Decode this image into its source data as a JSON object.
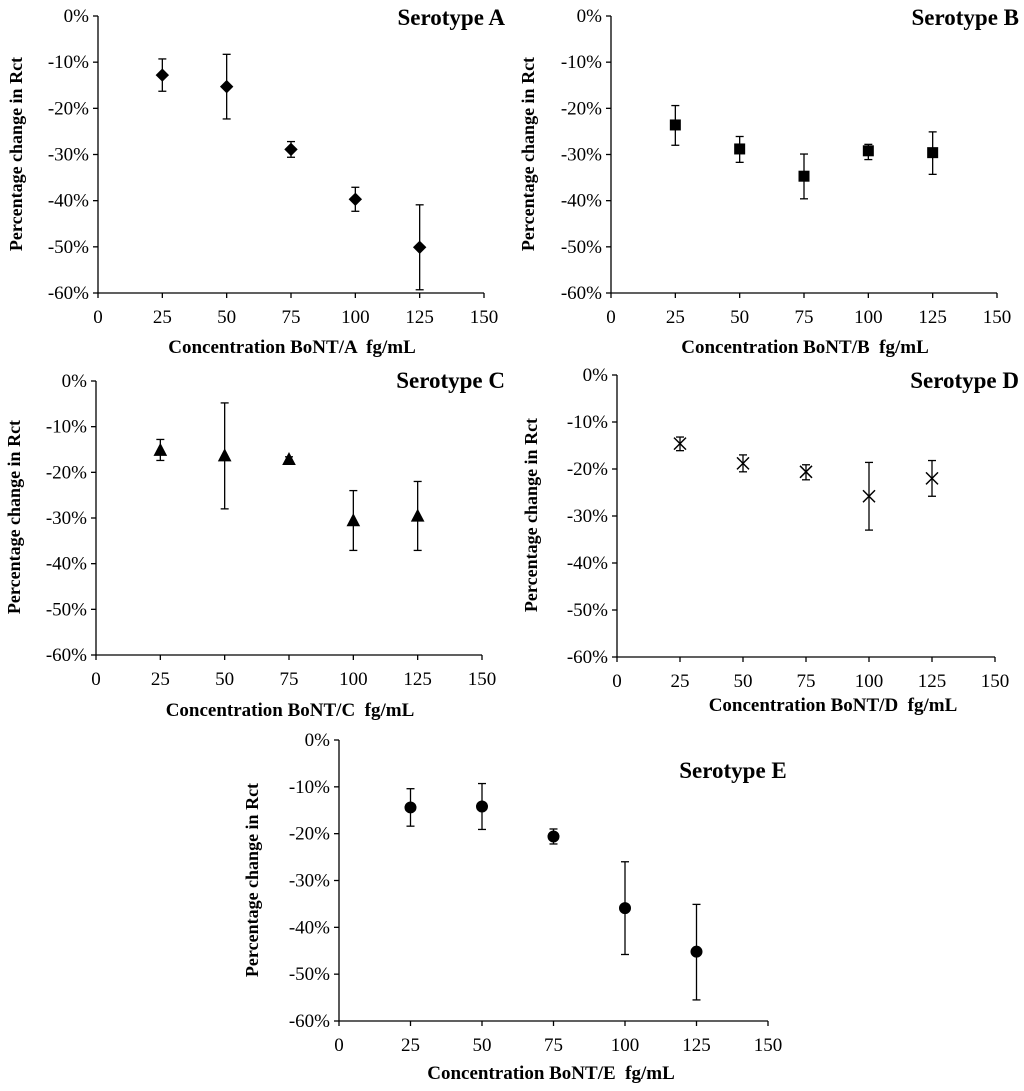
{
  "chart_data": [
    {
      "id": "A",
      "type": "scatter",
      "title": "Serotype A",
      "xlabel": "Concentration BoNT/A  fg/mL",
      "ylabel": "Percentage change in Rct",
      "marker": "diamond",
      "xlim": [
        0,
        150
      ],
      "ylim": [
        -60,
        0
      ],
      "x_ticks": [
        0,
        25,
        50,
        75,
        100,
        125,
        150
      ],
      "y_ticks": [
        0,
        -10,
        -20,
        -30,
        -40,
        -50,
        -60
      ],
      "y_tick_labels": [
        "0%",
        "-10%",
        "-20%",
        "-30%",
        "-40%",
        "-50%",
        "-60%"
      ],
      "points": [
        {
          "x": 25,
          "y": -12.8,
          "err_low": -16.3,
          "err_high": -9.3
        },
        {
          "x": 50,
          "y": -15.3,
          "err_low": -22.3,
          "err_high": -8.3
        },
        {
          "x": 75,
          "y": -28.9,
          "err_low": -30.6,
          "err_high": -27.2
        },
        {
          "x": 100,
          "y": -39.7,
          "err_low": -42.3,
          "err_high": -37.1
        },
        {
          "x": 125,
          "y": -50.1,
          "err_low": -59.3,
          "err_high": -40.9
        }
      ]
    },
    {
      "id": "B",
      "type": "scatter",
      "title": "Serotype B",
      "xlabel": "Concentration BoNT/B  fg/mL",
      "ylabel": "Percentage change in Rct",
      "marker": "square",
      "xlim": [
        0,
        150
      ],
      "ylim": [
        -60,
        0
      ],
      "x_ticks": [
        0,
        25,
        50,
        75,
        100,
        125,
        150
      ],
      "y_ticks": [
        0,
        -10,
        -20,
        -30,
        -40,
        -50,
        -60
      ],
      "y_tick_labels": [
        "0%",
        "-10%",
        "-20%",
        "-30%",
        "-40%",
        "-50%",
        "-60%"
      ],
      "points": [
        {
          "x": 25,
          "y": -23.6,
          "err_low": -28.0,
          "err_high": -19.4
        },
        {
          "x": 50,
          "y": -28.8,
          "err_low": -31.7,
          "err_high": -26.1
        },
        {
          "x": 75,
          "y": -34.7,
          "err_low": -39.6,
          "err_high": -29.9
        },
        {
          "x": 100,
          "y": -29.2,
          "err_low": -31.1,
          "err_high": -27.8
        },
        {
          "x": 125,
          "y": -29.6,
          "err_low": -34.3,
          "err_high": -25.1
        }
      ]
    },
    {
      "id": "C",
      "type": "scatter",
      "title": "Serotype C",
      "xlabel": "Concentration BoNT/C  fg/mL",
      "ylabel": "Percentage change in Rct",
      "marker": "triangle",
      "xlim": [
        0,
        150
      ],
      "ylim": [
        -60,
        0
      ],
      "x_ticks": [
        0,
        25,
        50,
        75,
        100,
        125,
        150
      ],
      "y_ticks": [
        0,
        -10,
        -20,
        -30,
        -40,
        -50,
        -60
      ],
      "y_tick_labels": [
        "0%",
        "-10%",
        "-20%",
        "-30%",
        "-40%",
        "-50%",
        "-60%"
      ],
      "points": [
        {
          "x": 25,
          "y": -15.2,
          "err_low": -17.4,
          "err_high": -12.8
        },
        {
          "x": 50,
          "y": -16.4,
          "err_low": -28.0,
          "err_high": -4.8
        },
        {
          "x": 75,
          "y": -17.2,
          "err_low": -17.8,
          "err_high": -16.6
        },
        {
          "x": 100,
          "y": -30.6,
          "err_low": -37.1,
          "err_high": -24.0
        },
        {
          "x": 125,
          "y": -29.6,
          "err_low": -37.1,
          "err_high": -22.0
        }
      ]
    },
    {
      "id": "D",
      "type": "scatter",
      "title": "Serotype D",
      "xlabel": "Concentration BoNT/D  fg/mL",
      "ylabel": "Percentage change in Rct",
      "marker": "x",
      "xlim": [
        0,
        150
      ],
      "ylim": [
        -60,
        0
      ],
      "x_ticks": [
        0,
        25,
        50,
        75,
        100,
        125,
        150
      ],
      "y_ticks": [
        0,
        -10,
        -20,
        -30,
        -40,
        -50,
        -60
      ],
      "y_tick_labels": [
        "0%",
        "-10%",
        "-20%",
        "-30%",
        "-40%",
        "-50%",
        "-60%"
      ],
      "points": [
        {
          "x": 25,
          "y": -14.6,
          "err_low": -16.1,
          "err_high": -13.2
        },
        {
          "x": 50,
          "y": -18.8,
          "err_low": -20.6,
          "err_high": -17.0
        },
        {
          "x": 75,
          "y": -20.6,
          "err_low": -22.3,
          "err_high": -19.1
        },
        {
          "x": 100,
          "y": -25.8,
          "err_low": -33.0,
          "err_high": -18.6
        },
        {
          "x": 125,
          "y": -22.0,
          "err_low": -25.8,
          "err_high": -18.2
        }
      ]
    },
    {
      "id": "E",
      "type": "scatter",
      "title": "Serotype E",
      "xlabel": "Concentration BoNT/E  fg/mL",
      "ylabel": "Percentage change in Rct",
      "marker": "circle",
      "xlim": [
        0,
        150
      ],
      "ylim": [
        -60,
        0
      ],
      "x_ticks": [
        0,
        25,
        50,
        75,
        100,
        125,
        150
      ],
      "y_ticks": [
        0,
        -10,
        -20,
        -30,
        -40,
        -50,
        -60
      ],
      "y_tick_labels": [
        "0%",
        "-10%",
        "-20%",
        "-30%",
        "-40%",
        "-50%",
        "-60%"
      ],
      "points": [
        {
          "x": 25,
          "y": -14.4,
          "err_low": -18.4,
          "err_high": -10.4
        },
        {
          "x": 50,
          "y": -14.2,
          "err_low": -19.1,
          "err_high": -9.3
        },
        {
          "x": 75,
          "y": -20.6,
          "err_low": -22.2,
          "err_high": -19.0
        },
        {
          "x": 100,
          "y": -35.9,
          "err_low": -45.8,
          "err_high": -26.0
        },
        {
          "x": 125,
          "y": -45.2,
          "err_low": -55.5,
          "err_high": -35.1
        }
      ]
    }
  ]
}
